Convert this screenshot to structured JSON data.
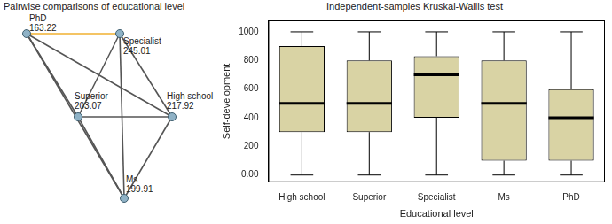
{
  "diagram": {
    "title": "Pairwise comparisons of educational level",
    "nodes": [
      {
        "label": "PhD",
        "value": 163.22
      },
      {
        "label": "Specialist",
        "value": 245.01
      },
      {
        "label": "Superior",
        "value": 203.07
      },
      {
        "label": "High school",
        "value": 217.92
      },
      {
        "label": "Ms",
        "value": 199.91
      }
    ],
    "edges": [
      {
        "from": "PhD",
        "to": "Specialist",
        "color": "#f0b030"
      },
      {
        "from": "PhD",
        "to": "Superior",
        "color": "#555555"
      },
      {
        "from": "PhD",
        "to": "Ms",
        "color": "#555555"
      },
      {
        "from": "PhD",
        "to": "High school",
        "color": "#555555"
      },
      {
        "from": "Specialist",
        "to": "Superior",
        "color": "#555555"
      },
      {
        "from": "Specialist",
        "to": "High school",
        "color": "#555555"
      },
      {
        "from": "Specialist",
        "to": "Ms",
        "color": "#555555"
      },
      {
        "from": "Superior",
        "to": "High school",
        "color": "#555555"
      },
      {
        "from": "Superior",
        "to": "Ms",
        "color": "#555555"
      },
      {
        "from": "High school",
        "to": "Ms",
        "color": "#555555"
      }
    ]
  },
  "chart_data": {
    "type": "boxplot",
    "title": "Independent-samples Kruskal-Wallis test",
    "x_label": "Educational level",
    "y_label": "Self-development",
    "categories": [
      "High school",
      "Superior",
      "Specialist",
      "Ms",
      "PhD"
    ],
    "min": [
      0,
      0,
      0,
      0,
      0
    ],
    "q1": [
      300,
      300,
      400,
      100,
      100
    ],
    "median": [
      500,
      500,
      700,
      500,
      400
    ],
    "q3": [
      900,
      800,
      830,
      800,
      600
    ],
    "max": [
      1000,
      1000,
      1000,
      1000,
      1000
    ],
    "color": "#d9d3a4",
    "ylim": [
      -50,
      1080
    ],
    "yticks": [
      {
        "value": 0,
        "label": "0.00"
      },
      200,
      400,
      600,
      800,
      1000
    ],
    "grid": false
  }
}
